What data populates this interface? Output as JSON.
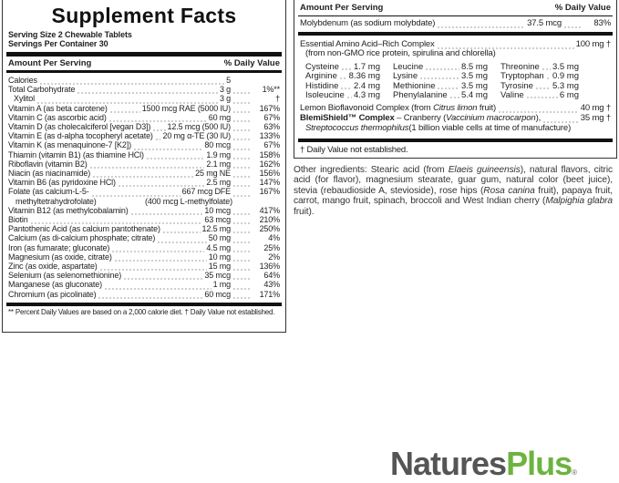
{
  "left": {
    "title": "Supplement Facts",
    "serving_size": "Serving Size 2 Chewable Tablets",
    "servings_per_container": "Servings Per Container 30",
    "header_amount": "Amount Per Serving",
    "header_dv": "% Daily Value",
    "rows": [
      {
        "name": "Calories",
        "amount": "5",
        "dv": ""
      },
      {
        "name": "Total Carbohydrate",
        "amount": "3 g",
        "dv": "1%**"
      },
      {
        "name": "Xylitol",
        "amount": "3 g",
        "dv": "†",
        "indent": true
      },
      {
        "name": "Vitamin A (as beta carotene)",
        "amount": "1500 mcg RAE (5000 IU)",
        "dv": "167%"
      },
      {
        "name": "Vitamin C (as ascorbic acid)",
        "amount": "60 mg",
        "dv": "67%"
      },
      {
        "name": "Vitamin D (as cholecalciferol [vegan D3])",
        "amount": "12.5 mcg (500 IU)",
        "dv": "63%"
      },
      {
        "name": "Vitamin E (as d-alpha tocopheryl acetate)",
        "amount": "20 mg α-TE (30 IU)",
        "dv": "133%"
      },
      {
        "name": "Vitamin K (as menaquinone-7 [K2])",
        "amount": "80 mcg",
        "dv": "67%"
      },
      {
        "name": "Thiamin (vitamin B1) (as thiamine HCl)",
        "amount": "1.9 mg",
        "dv": "158%"
      },
      {
        "name": "Riboflavin (vitamin B2)",
        "amount": "2.1 mg",
        "dv": "162%"
      },
      {
        "name": "Niacin (as niacinamide)",
        "amount": "25 mg NE",
        "dv": "156%"
      },
      {
        "name": "Vitamin B6 (as pyridoxine HCl)",
        "amount": "2.5 mg",
        "dv": "147%"
      },
      {
        "name": "Folate (as calcium-L-5-",
        "amount": "667 mcg DFE",
        "dv": "167%",
        "cont_name": "methyltetrahydrofolate)",
        "cont_amount": "(400 mcg L-methylfolate)"
      },
      {
        "name": "Vitamin B12 (as methylcobalamin)",
        "amount": "10 mcg",
        "dv": "417%"
      },
      {
        "name": "Biotin",
        "amount": "63 mcg",
        "dv": "210%"
      },
      {
        "name": "Pantothenic Acid (as calcium pantothenate)",
        "amount": "12.5 mg",
        "dv": "250%"
      },
      {
        "name": "Calcium (as di-calcium phosphate; citrate)",
        "amount": "50 mg",
        "dv": "4%"
      },
      {
        "name": "Iron (as fumarate; gluconate)",
        "amount": "4.5 mg",
        "dv": "25%"
      },
      {
        "name": "Magnesium (as oxide, citrate)",
        "amount": "10 mg",
        "dv": "2%"
      },
      {
        "name": "Zinc (as oxide, aspartate)",
        "amount": "15 mg",
        "dv": "136%"
      },
      {
        "name": "Selenium (as selenomethionine)",
        "amount": "35 mcg",
        "dv": "64%"
      },
      {
        "name": "Manganese (as gluconate)",
        "amount": "1 mg",
        "dv": "43%"
      },
      {
        "name": "Chromium (as picolinate)",
        "amount": "60 mcg",
        "dv": "171%"
      }
    ],
    "footnote": "** Percent Daily Values are based on a 2,000 calorie diet.  † Daily Value not established."
  },
  "right": {
    "header_amount": "Amount Per Serving",
    "header_dv": "% Daily Value",
    "molybdenum": {
      "name": "Molybdenum (as sodium molybdate)",
      "amount": "37.5 mcg",
      "dv": "83%"
    },
    "eaa": {
      "name": "Essential Amino Acid–Rich Complex",
      "amount": "100 mg †",
      "source": "(from non-GMO rice protein, spirulina and chlorella)"
    },
    "amino_acids": [
      {
        "name": "Cysteine",
        "amount": "1.7 mg"
      },
      {
        "name": "Leucine",
        "amount": "8.5 mg"
      },
      {
        "name": "Threonine",
        "amount": "3.5 mg"
      },
      {
        "name": "Arginine",
        "amount": "8.36 mg"
      },
      {
        "name": "Lysine",
        "amount": "3.5 mg"
      },
      {
        "name": "Tryptophan",
        "amount": "0.9 mg"
      },
      {
        "name": "Histidine",
        "amount": "2.4 mg"
      },
      {
        "name": "Methionine",
        "amount": "3.5 mg"
      },
      {
        "name": "Tyrosine",
        "amount": "5.3 mg"
      },
      {
        "name": "Isoleucine",
        "amount": "4.3 mg"
      },
      {
        "name": "Phenylalanine",
        "amount": "5.4 mg"
      },
      {
        "name": "Valine",
        "amount": "6 mg"
      }
    ],
    "lemon": {
      "pre": "Lemon Bioflavonoid Complex (from ",
      "italic": "Citrus limon",
      "post": " fruit)",
      "amount": "40 mg †"
    },
    "blemishield": {
      "bold": "BlemiShield™ Complex",
      "pre": " – Cranberry (",
      "italic": "Vaccinium macrocarpon",
      "post": "),",
      "amount": "35 mg †"
    },
    "strepto": {
      "italic": "Streptococcus thermophilus",
      "post": " (1 billion viable cells at time of manufacture)"
    },
    "footnote": "† Daily Value not established."
  },
  "other_ingredients": {
    "parts": [
      {
        "t": "Other ingredients: Stearic acid (from "
      },
      {
        "t": "Elaeis guineensis",
        "i": true
      },
      {
        "t": "), natural flavors, citric acid (for flavor), magnesium stearate, guar gum, natural color (beet juice), stevia (rebaudioside A, stevioside), rose hips ("
      },
      {
        "t": "Rosa canina",
        "i": true
      },
      {
        "t": " fruit), papaya fruit, carrot, mango fruit, spinach, broccoli and West Indian cherry ("
      },
      {
        "t": "Malpighia glabra",
        "i": true
      },
      {
        "t": " fruit)."
      }
    ]
  },
  "logo": {
    "part1": "Natures",
    "part2": "Plus",
    "mark": "®",
    "color1": "#555555",
    "color2": "#6db33f"
  }
}
